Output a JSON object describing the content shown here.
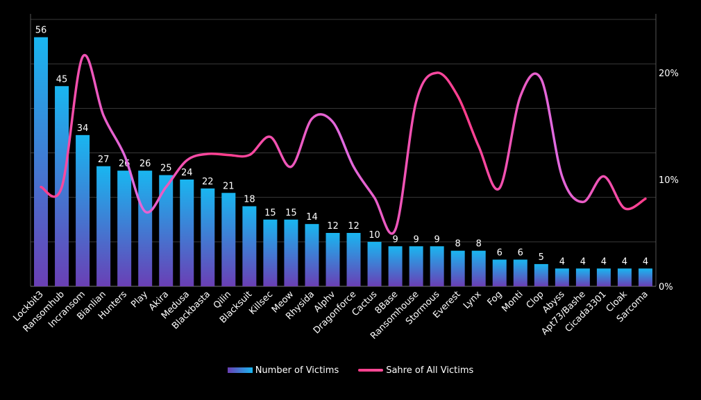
{
  "chart_data": {
    "type": "bar",
    "categories": [
      "Lockbit3",
      "Ransomhub",
      "Incransom",
      "Bianlian",
      "Hunters",
      "Play",
      "Akira",
      "Medusa",
      "Blackbasta",
      "Qilin",
      "Blacksuit",
      "Killsec",
      "Meow",
      "Rhysida",
      "Alphv",
      "Dragonforce",
      "Cactus",
      "8Base",
      "Ransomhouse",
      "Stormous",
      "Everest",
      "Lynx",
      "Fog",
      "Monti",
      "Clop",
      "Abyss",
      "Apt73/Bashe",
      "Cicada3301",
      "Cloak",
      "Sarcoma"
    ],
    "series": [
      {
        "name": "Number of Victims",
        "type": "bar",
        "axis": "left",
        "values": [
          56,
          45,
          34,
          27,
          26,
          26,
          25,
          24,
          22,
          21,
          18,
          15,
          15,
          14,
          12,
          12,
          10,
          9,
          9,
          9,
          8,
          8,
          6,
          6,
          5,
          4,
          4,
          4,
          4,
          4
        ]
      },
      {
        "name": "Sahre of All Victims",
        "type": "line",
        "axis": "right",
        "values": [
          9.3,
          9.3,
          21.5,
          16.0,
          12.3,
          7.0,
          9.3,
          11.8,
          12.4,
          12.3,
          12.3,
          14.0,
          11.2,
          15.7,
          15.4,
          11.2,
          8.3,
          5.3,
          17.3,
          20.0,
          17.8,
          13.1,
          9.2,
          17.8,
          19.4,
          10.3,
          7.9,
          10.3,
          7.3,
          8.2
        ]
      }
    ],
    "y_left_range": [
      0,
      60
    ],
    "y_right_range": [
      0,
      25
    ],
    "y_right_ticks": [
      "0%",
      "10%",
      "20%"
    ],
    "data_labels": [
      "56",
      "45",
      "34",
      "27",
      "26",
      "26",
      "25",
      "24",
      "22",
      "21",
      "18",
      "15",
      "15",
      "14",
      "12",
      "12",
      "10",
      "9",
      "9",
      "9",
      "8",
      "8",
      "6",
      "6",
      "5",
      "4",
      "4",
      "4",
      "4",
      "4"
    ],
    "grid": true,
    "legend_position": "bottom",
    "colors": {
      "bar_top": "#19b6f0",
      "bar_bottom": "#6a3fb5",
      "line_main": "#ff3d8b",
      "line_alt": "#e06ae0",
      "grid": "#3a3a3a",
      "background": "#000000"
    }
  }
}
